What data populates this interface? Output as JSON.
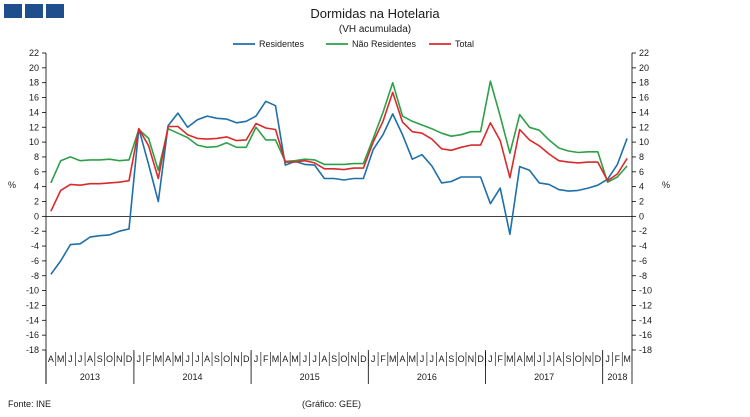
{
  "header": {
    "title": "Dormidas na Hotelaria",
    "subtitle": "(VH acumulada)"
  },
  "footer": {
    "source": "Fonte: INE",
    "credit": "(Gráfico: GEE)"
  },
  "chart_data": {
    "type": "line",
    "title": "Dormidas na Hotelaria",
    "subtitle": "(VH acumulada)",
    "ylabel": "%",
    "ylim": [
      -18,
      22
    ],
    "yticks": [
      -18,
      -16,
      -14,
      -12,
      -10,
      -8,
      -6,
      -4,
      -2,
      0,
      2,
      4,
      6,
      8,
      10,
      12,
      14,
      16,
      18,
      20,
      22
    ],
    "grid": false,
    "legend_position": "top-center",
    "month_labels": [
      "A",
      "M",
      "J",
      "J",
      "A",
      "S",
      "O",
      "N",
      "D",
      "J",
      "F",
      "M",
      "A",
      "M",
      "J",
      "J",
      "A",
      "S",
      "O",
      "N",
      "D",
      "J",
      "F",
      "M",
      "A",
      "M",
      "J",
      "J",
      "A",
      "S",
      "O",
      "N",
      "D",
      "J",
      "F",
      "M",
      "A",
      "M",
      "J",
      "J",
      "A",
      "S",
      "O",
      "N",
      "D",
      "J",
      "F",
      "M",
      "A",
      "M",
      "J",
      "J",
      "A",
      "S",
      "O",
      "N",
      "D",
      "J",
      "F",
      "M"
    ],
    "years": [
      {
        "label": "2013",
        "start": 0,
        "count": 9
      },
      {
        "label": "2014",
        "start": 9,
        "count": 12
      },
      {
        "label": "2015",
        "start": 21,
        "count": 12
      },
      {
        "label": "2016",
        "start": 33,
        "count": 12
      },
      {
        "label": "2017",
        "start": 45,
        "count": 12
      },
      {
        "label": "2018",
        "start": 57,
        "count": 3
      }
    ],
    "series": [
      {
        "name": "Residentes",
        "color": "#1f6fa8",
        "values": [
          -7.8,
          -6.0,
          -3.8,
          -3.7,
          -2.8,
          -2.6,
          -2.5,
          -2.0,
          -1.7,
          11.8,
          7.0,
          2.0,
          12.2,
          13.9,
          12.0,
          13.0,
          13.5,
          13.2,
          13.1,
          12.6,
          12.8,
          13.5,
          15.5,
          14.9,
          6.9,
          7.4,
          7.0,
          6.9,
          5.1,
          5.1,
          4.9,
          5.1,
          5.1,
          9.0,
          11.0,
          13.8,
          11.0,
          7.7,
          8.3,
          6.8,
          4.5,
          4.7,
          5.3,
          5.3,
          5.3,
          1.7,
          3.8,
          -2.4,
          6.7,
          6.2,
          4.5,
          4.3,
          3.6,
          3.4,
          3.5,
          3.8,
          4.2,
          5.0,
          7.0,
          10.5
        ]
      },
      {
        "name": "Não Residentes",
        "color": "#2ea04a",
        "values": [
          4.5,
          7.5,
          8.0,
          7.5,
          7.6,
          7.6,
          7.7,
          7.5,
          7.6,
          11.7,
          10.5,
          6.2,
          11.8,
          11.2,
          10.6,
          9.6,
          9.3,
          9.4,
          9.9,
          9.3,
          9.3,
          12.0,
          10.3,
          10.3,
          7.4,
          7.5,
          7.7,
          7.6,
          7.0,
          7.0,
          7.0,
          7.1,
          7.1,
          10.5,
          14.0,
          18.0,
          13.5,
          12.8,
          12.3,
          11.8,
          11.2,
          10.8,
          11.0,
          11.4,
          11.4,
          18.2,
          13.5,
          8.5,
          13.7,
          12.0,
          11.6,
          10.3,
          9.2,
          8.8,
          8.6,
          8.7,
          8.7,
          4.6,
          5.3,
          6.8
        ]
      },
      {
        "name": "Total",
        "color": "#d92b2b",
        "values": [
          0.7,
          3.5,
          4.3,
          4.2,
          4.4,
          4.4,
          4.5,
          4.6,
          4.8,
          11.8,
          9.5,
          5.1,
          12.1,
          12.1,
          11.0,
          10.5,
          10.4,
          10.5,
          10.7,
          10.2,
          10.3,
          12.5,
          11.9,
          11.7,
          7.3,
          7.3,
          7.5,
          7.2,
          6.4,
          6.4,
          6.3,
          6.5,
          6.5,
          10.0,
          12.8,
          16.7,
          12.7,
          11.4,
          11.2,
          10.4,
          9.1,
          8.9,
          9.3,
          9.6,
          9.6,
          12.6,
          10.2,
          5.2,
          11.7,
          10.3,
          9.5,
          8.4,
          7.5,
          7.3,
          7.2,
          7.3,
          7.3,
          4.8,
          5.7,
          7.8
        ]
      }
    ]
  }
}
